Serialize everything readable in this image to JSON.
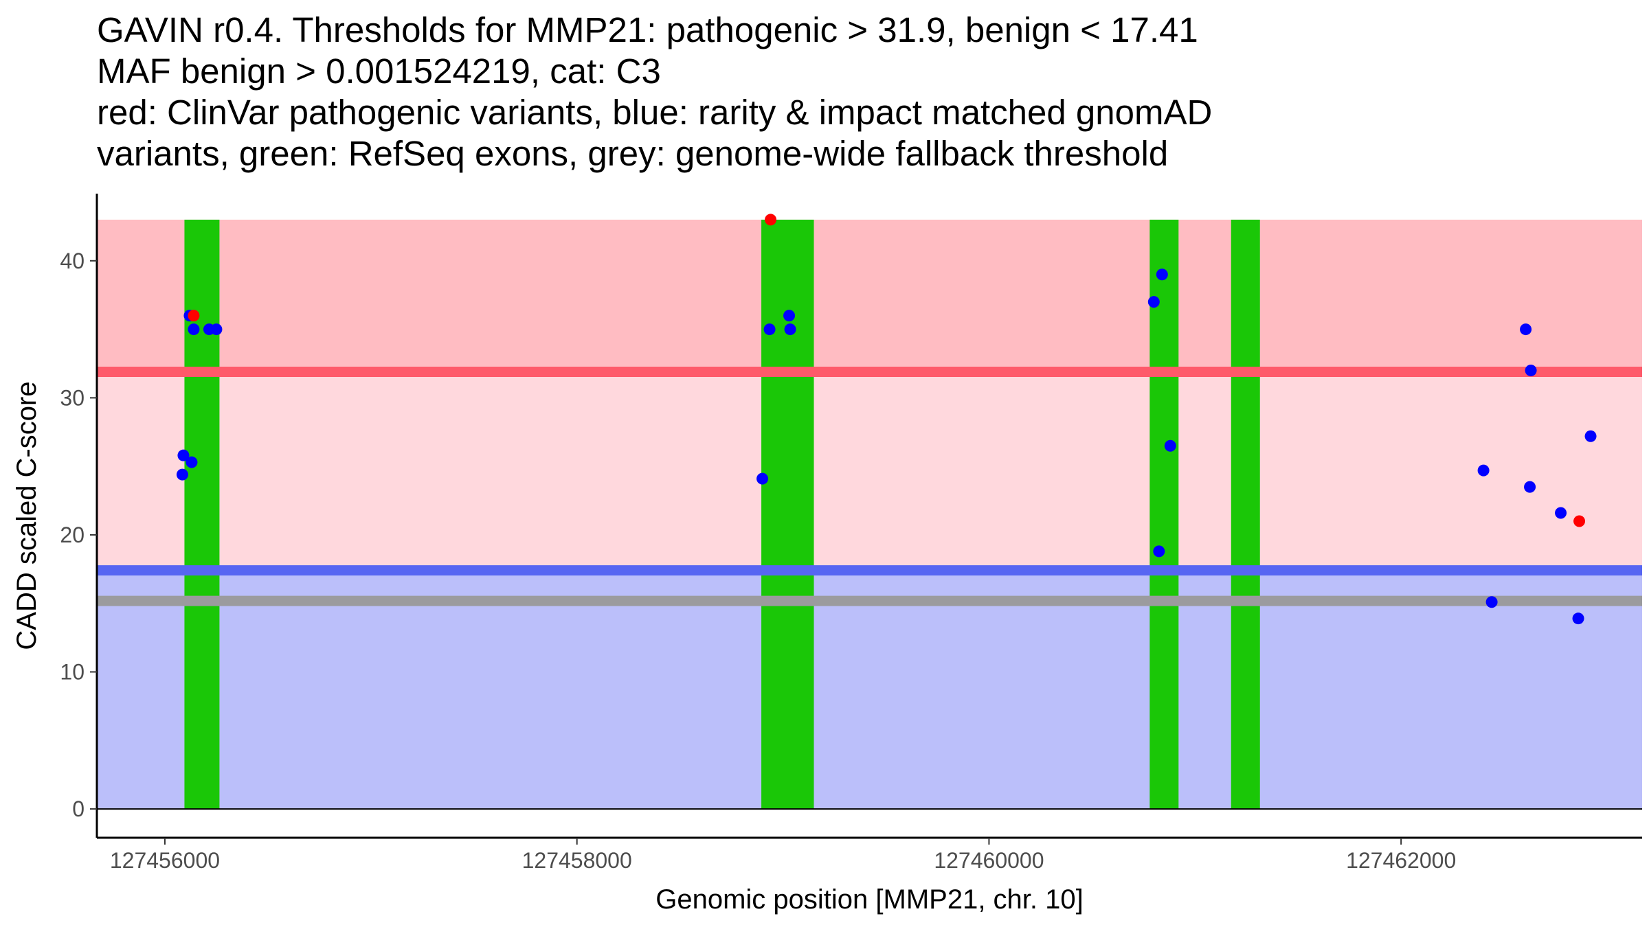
{
  "title": {
    "line1": "GAVIN r0.4. Thresholds for MMP21: pathogenic > 31.9, benign < 17.41",
    "line2": "MAF benign > 0.001524219, cat: C3",
    "line3": "red: ClinVar pathogenic variants, blue: rarity & impact matched gnomAD",
    "line4": "variants, green: RefSeq exons, grey: genome-wide fallback threshold"
  },
  "chart_data": {
    "type": "scatter",
    "xlabel": "Genomic position [MMP21, chr. 10]",
    "ylabel": "CADD scaled C-score",
    "xlim": [
      127455670,
      127463170
    ],
    "ylim": [
      -2.1,
      44.9
    ],
    "x_ticks": [
      127456000,
      127458000,
      127460000,
      127462000
    ],
    "x_tick_labels": [
      "127456000",
      "127458000",
      "127460000",
      "127462000"
    ],
    "y_ticks": [
      0,
      10,
      20,
      30,
      40
    ],
    "y_tick_labels": [
      "0",
      "10",
      "20",
      "30",
      "40"
    ],
    "regions": [
      {
        "name": "pathogenic-zone",
        "ymin": 31.9,
        "ymax": 43,
        "color": "#ffbcc2"
      },
      {
        "name": "uncertain-zone",
        "ymin": 17.41,
        "ymax": 31.9,
        "color": "#ffd8dd"
      },
      {
        "name": "benign-zone",
        "ymin": 0,
        "ymax": 17.41,
        "color": "#bbbffa"
      }
    ],
    "threshold_lines": [
      {
        "name": "pathogenic-threshold",
        "y": 31.9,
        "color": "#fe5a6a"
      },
      {
        "name": "benign-threshold",
        "y": 17.41,
        "color": "#5766f2"
      },
      {
        "name": "fallback-threshold",
        "y": 15.18,
        "color": "#9b9b9e"
      }
    ],
    "exons": [
      {
        "start": 127456095,
        "end": 127456265,
        "ymin": 0,
        "ymax": 43,
        "color": "#1ac707"
      },
      {
        "start": 127458895,
        "end": 127459150,
        "ymin": 0,
        "ymax": 43,
        "color": "#1ac707"
      },
      {
        "start": 127460780,
        "end": 127460920,
        "ymin": 0,
        "ymax": 43,
        "color": "#1ac707"
      },
      {
        "start": 127461175,
        "end": 127461315,
        "ymin": 0,
        "ymax": 43,
        "color": "#1ac707"
      }
    ],
    "series": [
      {
        "name": "gnomAD",
        "color": "#0000ff",
        "points": [
          [
            127456120,
            36.0
          ],
          [
            127456140,
            35.0
          ],
          [
            127456215,
            35.0
          ],
          [
            127456250,
            35.0
          ],
          [
            127456090,
            25.8
          ],
          [
            127456130,
            25.3
          ],
          [
            127456085,
            24.4
          ],
          [
            127458900,
            24.1
          ],
          [
            127458935,
            35.0
          ],
          [
            127459030,
            36.0
          ],
          [
            127459035,
            35.0
          ],
          [
            127460800,
            37.0
          ],
          [
            127460840,
            39.0
          ],
          [
            127460880,
            26.5
          ],
          [
            127460825,
            18.8
          ],
          [
            127462400,
            24.7
          ],
          [
            127462440,
            15.1
          ],
          [
            127462605,
            35.0
          ],
          [
            127462630,
            32.0
          ],
          [
            127462625,
            23.5
          ],
          [
            127462775,
            21.6
          ],
          [
            127462920,
            27.2
          ],
          [
            127462860,
            13.9
          ]
        ]
      },
      {
        "name": "ClinVar pathogenic",
        "color": "#ff0000",
        "points": [
          [
            127456140,
            36.0
          ],
          [
            127458940,
            43.0
          ],
          [
            127462865,
            21.0
          ]
        ]
      }
    ]
  }
}
